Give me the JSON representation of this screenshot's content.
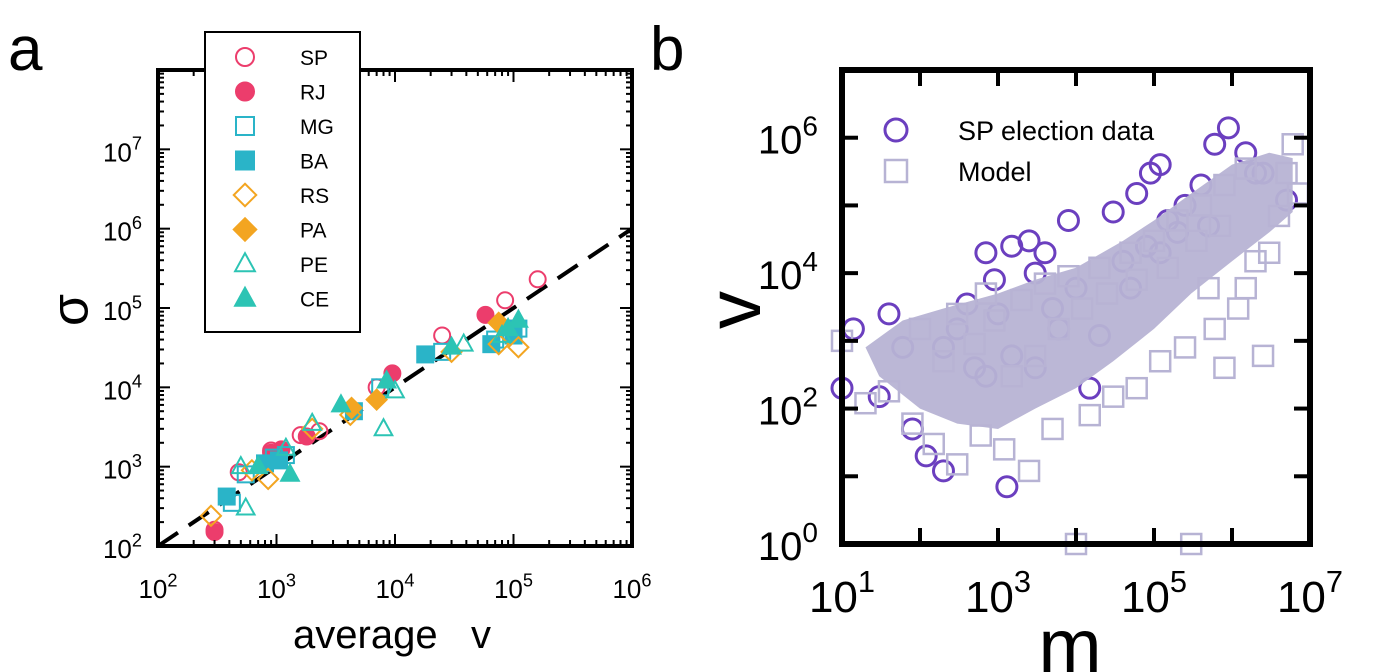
{
  "panel_labels": {
    "a": "a",
    "b": "b"
  },
  "chart_data": [
    {
      "type": "scatter",
      "panel": "a",
      "xscale": "log",
      "yscale": "log",
      "xlim": [
        100,
        1000000
      ],
      "ylim": [
        100,
        100000000
      ],
      "xlabel": "average   v",
      "ylabel": "σ",
      "xticks": [
        {
          "exp": "2"
        },
        {
          "exp": "3"
        },
        {
          "exp": "4"
        },
        {
          "exp": "5"
        },
        {
          "exp": "6"
        }
      ],
      "yticks": [
        {
          "exp": "2"
        },
        {
          "exp": "3"
        },
        {
          "exp": "4"
        },
        {
          "exp": "5"
        },
        {
          "exp": "6"
        },
        {
          "exp": "7"
        }
      ],
      "tick_base": "10",
      "legend_position": "top-left",
      "reference_line": {
        "style": "dashed",
        "color": "#000000",
        "x": [
          100,
          1000000
        ],
        "y": [
          100,
          1000000
        ]
      },
      "series": [
        {
          "name": "SP",
          "marker": "circle",
          "filled": false,
          "color": "#ec3d6c",
          "points": [
            [
              300,
              160
            ],
            [
              480,
              850
            ],
            [
              900,
              1600
            ],
            [
              1600,
              2500
            ],
            [
              2300,
              2800
            ],
            [
              7000,
              10000
            ],
            [
              25000,
              45000
            ],
            [
              85000,
              125000
            ],
            [
              160000,
              230000
            ]
          ]
        },
        {
          "name": "RJ",
          "marker": "circle",
          "filled": true,
          "color": "#ec3d6c",
          "points": [
            [
              300,
              150
            ],
            [
              900,
              1500
            ],
            [
              1100,
              1650
            ],
            [
              1800,
              2400
            ],
            [
              9500,
              15000
            ],
            [
              58000,
              82000
            ],
            [
              95000,
              55000
            ]
          ]
        },
        {
          "name": "MG",
          "marker": "square",
          "filled": false,
          "color": "#2ab4c8",
          "points": [
            [
              420,
              350
            ],
            [
              550,
              800
            ],
            [
              950,
              1300
            ],
            [
              1200,
              1400
            ],
            [
              7500,
              10000
            ],
            [
              25000,
              28000
            ],
            [
              70000,
              40000
            ],
            [
              110000,
              55000
            ]
          ]
        },
        {
          "name": "BA",
          "marker": "square",
          "filled": true,
          "color": "#2ab4c8",
          "points": [
            [
              380,
              420
            ],
            [
              800,
              1100
            ],
            [
              1050,
              1200
            ],
            [
              4500,
              5000
            ],
            [
              18000,
              26000
            ],
            [
              65000,
              35000
            ],
            [
              100000,
              45000
            ]
          ]
        },
        {
          "name": "RS",
          "marker": "diamond",
          "filled": false,
          "color": "#f3a521",
          "points": [
            [
              280,
              240
            ],
            [
              620,
              900
            ],
            [
              850,
              700
            ],
            [
              2000,
              3000
            ],
            [
              4200,
              4500
            ],
            [
              30000,
              28000
            ],
            [
              75000,
              35000
            ],
            [
              110000,
              32000
            ]
          ]
        },
        {
          "name": "PA",
          "marker": "diamond",
          "filled": true,
          "color": "#f3a521",
          "points": [
            [
              4300,
              5500
            ],
            [
              7000,
              7000
            ],
            [
              75000,
              65000
            ]
          ]
        },
        {
          "name": "PE",
          "marker": "triangle",
          "filled": false,
          "color": "#2cc4b4",
          "points": [
            [
              500,
              1000
            ],
            [
              550,
              300
            ],
            [
              1200,
              1700
            ],
            [
              2000,
              3500
            ],
            [
              10000,
              9000
            ],
            [
              8000,
              3000
            ],
            [
              38000,
              35000
            ],
            [
              80000,
              45000
            ]
          ]
        },
        {
          "name": "CE",
          "marker": "triangle",
          "filled": true,
          "color": "#2cc4b4",
          "points": [
            [
              700,
              1000
            ],
            [
              1300,
              800
            ],
            [
              3500,
              6000
            ],
            [
              8500,
              12000
            ],
            [
              30000,
              32000
            ],
            [
              90000,
              55000
            ],
            [
              110000,
              70000
            ]
          ]
        }
      ]
    },
    {
      "type": "scatter",
      "panel": "b",
      "xscale": "log",
      "yscale": "log",
      "xlim": [
        10,
        10000000
      ],
      "ylim": [
        1,
        10000000
      ],
      "xlabel": "m",
      "ylabel": "v",
      "xticks": [
        {
          "exp": "1"
        },
        {
          "exp": "3"
        },
        {
          "exp": "5"
        },
        {
          "exp": "7"
        }
      ],
      "yticks": [
        {
          "exp": "0"
        },
        {
          "exp": "2"
        },
        {
          "exp": "4"
        },
        {
          "exp": "6"
        }
      ],
      "tick_base": "10",
      "legend_position": "top-left",
      "series": [
        {
          "name": "SP election data",
          "marker": "circle",
          "filled": false,
          "color": "#6b3fbf",
          "points": [
            [
              10,
              200
            ],
            [
              14,
              1500
            ],
            [
              30,
              150
            ],
            [
              40,
              2500
            ],
            [
              60,
              800
            ],
            [
              80,
              50
            ],
            [
              120,
              20
            ],
            [
              200,
              12
            ],
            [
              400,
              3500
            ],
            [
              700,
              20000
            ],
            [
              900,
              8000
            ],
            [
              1300,
              7
            ],
            [
              1500,
              25000
            ],
            [
              2500,
              30000
            ],
            [
              3000,
              10000
            ],
            [
              4000,
              20000
            ],
            [
              8000,
              60000
            ],
            [
              15000,
              200
            ],
            [
              30000,
              80000
            ],
            [
              60000,
              150000
            ],
            [
              90000,
              300000
            ],
            [
              120000,
              400000
            ],
            [
              150000,
              60000
            ],
            [
              250000,
              100000
            ],
            [
              400000,
              200000
            ],
            [
              600000,
              800000
            ],
            [
              900000,
              1400000
            ],
            [
              1500000,
              600000
            ],
            [
              2500000,
              300000
            ],
            [
              5000000,
              120000
            ],
            [
              200,
              800
            ],
            [
              500,
              400
            ],
            [
              1000,
              2500
            ],
            [
              3000,
              400
            ],
            [
              6000,
              1500
            ],
            [
              20000,
              1200
            ],
            [
              50000,
              6000
            ],
            [
              120000,
              20000
            ],
            [
              500000,
              50000
            ],
            [
              2000000,
              300000
            ],
            [
              300,
              1500
            ],
            [
              700,
              300
            ],
            [
              1500,
              600
            ],
            [
              5000,
              3000
            ],
            [
              10000,
              6000
            ],
            [
              40000,
              15000
            ],
            [
              80000,
              25000
            ],
            [
              200000,
              40000
            ]
          ]
        },
        {
          "name": "Model",
          "marker": "square",
          "filled": false,
          "color": "#b7b3d4",
          "points": [
            [
              10,
              1000
            ],
            [
              20,
              120
            ],
            [
              40,
              180
            ],
            [
              80,
              60
            ],
            [
              150,
              30
            ],
            [
              300,
              15
            ],
            [
              600,
              40
            ],
            [
              1200,
              25
            ],
            [
              2500,
              12
            ],
            [
              5000,
              50
            ],
            [
              10000,
              1
            ],
            [
              15000,
              80
            ],
            [
              30000,
              150
            ],
            [
              60000,
              200
            ],
            [
              120000,
              500
            ],
            [
              250000,
              800
            ],
            [
              300000,
              1
            ],
            [
              600000,
              1500
            ],
            [
              1200000,
              3000
            ],
            [
              2500000,
              600
            ],
            [
              3000000,
              20000
            ],
            [
              4000000,
              70000
            ],
            [
              5000000,
              300000
            ],
            [
              6000000,
              800000
            ],
            [
              7000000,
              150000
            ],
            [
              500000,
              6000
            ],
            [
              800000,
              400
            ],
            [
              1500000,
              6000
            ],
            [
              2000000,
              15000
            ],
            [
              200,
              500
            ],
            [
              500,
              900
            ],
            [
              900,
              2000
            ],
            [
              2000,
              4000
            ],
            [
              4000,
              7000
            ],
            [
              8000,
              9000
            ],
            [
              20000,
              12000
            ],
            [
              50000,
              20000
            ],
            [
              100000,
              30000
            ],
            [
              200000,
              60000
            ],
            [
              400000,
              100000
            ],
            [
              800000,
              200000
            ],
            [
              1500000,
              350000
            ],
            [
              100,
              1500
            ],
            [
              300,
              2500
            ],
            [
              700,
              5000
            ],
            [
              1500,
              300
            ],
            [
              3000,
              600
            ],
            [
              6000,
              1500
            ],
            [
              12000,
              3000
            ],
            [
              25000,
              5000
            ],
            [
              60000,
              8000
            ],
            [
              150000,
              12000
            ],
            [
              350000,
              30000
            ],
            [
              700000,
              50000
            ]
          ]
        }
      ]
    }
  ]
}
